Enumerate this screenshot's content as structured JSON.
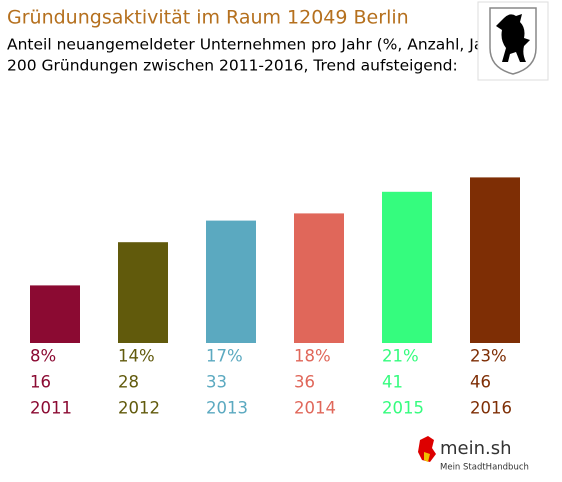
{
  "chart_data": {
    "type": "bar",
    "title": "Gründungsaktivität im Raum 12049 Berlin",
    "subtitle": [
      "Anteil neuangemeldeter Unternehmen pro Jahr (%, Anzahl, Jahr)",
      "200 Gründungen zwischen 2011-2016, Trend aufsteigend:"
    ],
    "categories": [
      "2011",
      "2012",
      "2013",
      "2014",
      "2015",
      "2016"
    ],
    "values": [
      8,
      14,
      17,
      18,
      21,
      23
    ],
    "value_labels": [
      "8%",
      "14%",
      "17%",
      "18%",
      "21%",
      "23%"
    ],
    "counts": [
      16,
      28,
      33,
      36,
      41,
      46
    ],
    "colors": [
      "#8b0a32",
      "#615a0c",
      "#5ba9c0",
      "#e0675a",
      "#35fc7e",
      "#7e2e05"
    ]
  },
  "logo": {
    "name": "mein.sh",
    "tagline": "Mein StadtHandbuch"
  }
}
